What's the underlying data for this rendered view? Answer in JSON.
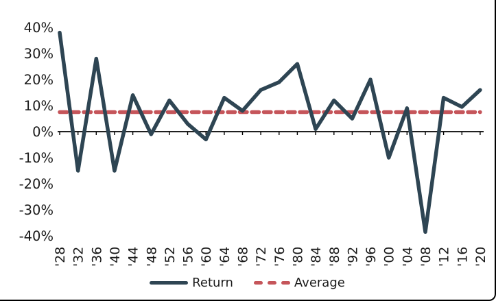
{
  "chart_data": {
    "type": "line",
    "title": "",
    "xlabel": "",
    "ylabel": "",
    "x_labels": [
      "'28",
      "'32",
      "'36",
      "'40",
      "'44",
      "'48",
      "'52",
      "'56",
      "'60",
      "'64",
      "'68",
      "'72",
      "'76",
      "'80",
      "'84",
      "'88",
      "'92",
      "'96",
      "'00",
      "'04",
      "'08",
      "'12",
      "'16",
      "'20"
    ],
    "y_ticks": {
      "values": [
        40,
        30,
        20,
        10,
        0,
        -10,
        -20,
        -30,
        -40
      ],
      "labels": [
        "40%",
        "30%",
        "20%",
        "10%",
        "0%",
        "-10%",
        "-20%",
        "-30%",
        "-40%"
      ]
    },
    "ylim": [
      -40,
      40
    ],
    "grid": false,
    "legend_position": "bottom",
    "series": [
      {
        "name": "Return",
        "style": "solid",
        "color": "#2e4553",
        "values": [
          38,
          -15,
          28,
          -15,
          14,
          -1,
          12,
          3,
          -3,
          13,
          8,
          16,
          19,
          26,
          1,
          12,
          5,
          20,
          -10,
          9,
          -38.5,
          13,
          9.5,
          16
        ]
      },
      {
        "name": "Average",
        "style": "dashed",
        "color": "#c5555a",
        "constant": 7.5
      }
    ]
  },
  "colors": {
    "text": "#1a1a1a",
    "axis": "#000000",
    "return_line": "#2e4553",
    "average_line": "#c5555a"
  }
}
